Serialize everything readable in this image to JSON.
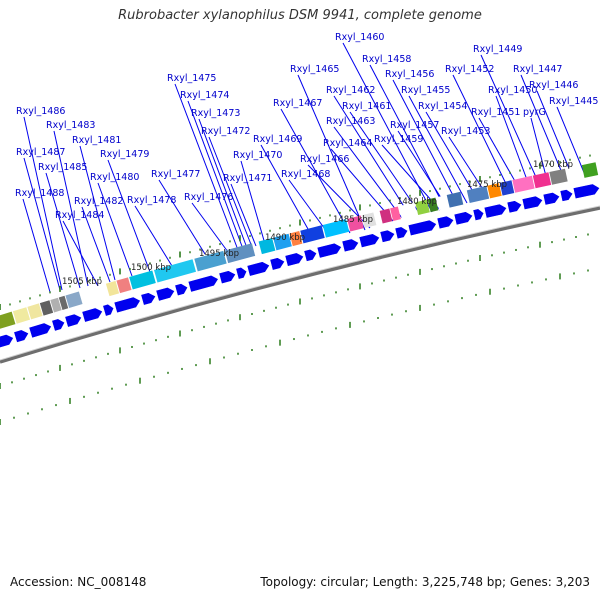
{
  "title": "Rubrobacter xylanophilus DSM 9941, complete genome",
  "footer": {
    "accession": "Accession: NC_008148",
    "summary": "Topology: circular; Length: 3,225,748 bp; Genes: 3,203"
  },
  "scale_labels": [
    "1470 kbp",
    "1475 kbp",
    "1480 kbp",
    "1485 kbp",
    "1490 kbp",
    "1495 kbp",
    "1500 kbp",
    "1505 kbp"
  ],
  "gene_labels": [
    "Rxyl_1460",
    "Rxyl_1449",
    "Rxyl_1458",
    "Rxyl_1465",
    "Rxyl_1452",
    "Rxyl_1447",
    "Rxyl_1456",
    "Rxyl_1475",
    "Rxyl_1446",
    "Rxyl_1455",
    "Rxyl_1450",
    "Rxyl_1474",
    "Rxyl_1467",
    "Rxyl_1462",
    "Rxyl_1445",
    "Rxyl_1461",
    "Rxyl_1454",
    "Rxyl_1486",
    "Rxyl_1473",
    "Rxyl_1451",
    "pyrG",
    "Rxyl_1463",
    "Rxyl_1457",
    "Rxyl_1483",
    "Rxyl_1472",
    "Rxyl_1453",
    "Rxyl_1481",
    "Rxyl_1469",
    "Rxyl_1464",
    "Rxyl_1459",
    "Rxyl_1487",
    "Rxyl_1479",
    "Rxyl_1470",
    "Rxyl_1466",
    "Rxyl_1485",
    "Rxyl_1477",
    "Rxyl_1468",
    "Rxyl_1480",
    "Rxyl_1471",
    "Rxyl_1488",
    "Rxyl_1482",
    "Rxyl_1478",
    "Rxyl_1476",
    "Rxyl_1484"
  ],
  "colors": {
    "label_text": "#0000cc",
    "leader_line": "#0000ee",
    "gene_arrow": "#0000ee",
    "backbone": "#7a7a7a",
    "tick": "#2a7a1a"
  }
}
